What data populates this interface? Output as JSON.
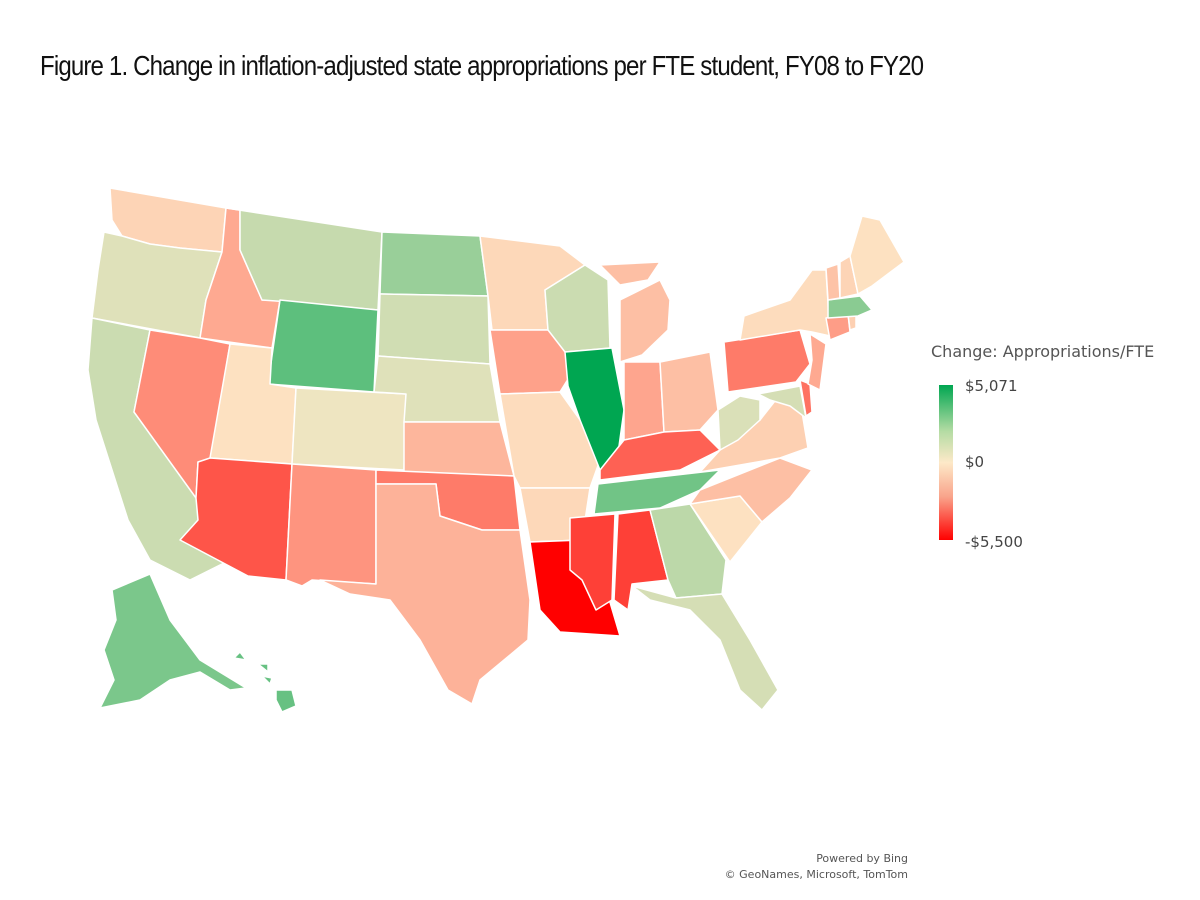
{
  "title": "Figure 1. Change in inflation-adjusted state appropriations per FTE student, FY08 to FY20",
  "legend": {
    "title": "Change: Appropriations/FTE",
    "max_label": "$5,071",
    "mid_label": "$0",
    "min_label": "-$5,500",
    "max_color": "#00a651",
    "mid_color": "#fde9c8",
    "min_color": "#ff0000"
  },
  "credits": {
    "line1": "Powered by Bing",
    "line2": "© GeoNames, Microsoft, TomTom"
  },
  "chart_data": {
    "type": "heatmap",
    "subtype": "choropleth",
    "title": "Figure 1. Change in inflation-adjusted state appropriations per FTE student, FY08 to FY20",
    "measure": "Change: Appropriations/FTE",
    "scale": {
      "min": -5500,
      "mid": 0,
      "max": 5071
    },
    "note": "Values estimated from color scale",
    "states": [
      {
        "id": "WA",
        "name": "Washington",
        "value": -500
      },
      {
        "id": "OR",
        "name": "Oregon",
        "value": 600
      },
      {
        "id": "CA",
        "name": "California",
        "value": 1000
      },
      {
        "id": "ID",
        "name": "Idaho",
        "value": -1500
      },
      {
        "id": "NV",
        "name": "Nevada",
        "value": -2200
      },
      {
        "id": "MT",
        "name": "Montana",
        "value": 1100
      },
      {
        "id": "WY",
        "name": "Wyoming",
        "value": 3200
      },
      {
        "id": "UT",
        "name": "Utah",
        "value": -200
      },
      {
        "id": "AZ",
        "name": "Arizona",
        "value": -3500
      },
      {
        "id": "CO",
        "name": "Colorado",
        "value": 300
      },
      {
        "id": "NM",
        "name": "New Mexico",
        "value": -2000
      },
      {
        "id": "ND",
        "name": "North Dakota",
        "value": 2000
      },
      {
        "id": "SD",
        "name": "South Dakota",
        "value": 900
      },
      {
        "id": "NE",
        "name": "Nebraska",
        "value": 600
      },
      {
        "id": "KS",
        "name": "Kansas",
        "value": -1200
      },
      {
        "id": "OK",
        "name": "Oklahoma",
        "value": -2600
      },
      {
        "id": "TX",
        "name": "Texas",
        "value": -1300
      },
      {
        "id": "MN",
        "name": "Minnesota",
        "value": -400
      },
      {
        "id": "IA",
        "name": "Iowa",
        "value": -1700
      },
      {
        "id": "MO",
        "name": "Missouri",
        "value": -300
      },
      {
        "id": "AR",
        "name": "Arkansas",
        "value": -400
      },
      {
        "id": "LA",
        "name": "Louisiana",
        "value": -5500
      },
      {
        "id": "WI",
        "name": "Wisconsin",
        "value": 1000
      },
      {
        "id": "IL",
        "name": "Illinois",
        "value": 5071
      },
      {
        "id": "MI",
        "name": "Michigan",
        "value": -1000
      },
      {
        "id": "IN",
        "name": "Indiana",
        "value": -1600
      },
      {
        "id": "OH",
        "name": "Ohio",
        "value": -1000
      },
      {
        "id": "KY",
        "name": "Kentucky",
        "value": -3200
      },
      {
        "id": "TN",
        "name": "Tennessee",
        "value": 2800
      },
      {
        "id": "MS",
        "name": "Mississippi",
        "value": -4000
      },
      {
        "id": "AL",
        "name": "Alabama",
        "value": -4000
      },
      {
        "id": "GA",
        "name": "Georgia",
        "value": 1300
      },
      {
        "id": "FL",
        "name": "Florida",
        "value": 800
      },
      {
        "id": "SC",
        "name": "South Carolina",
        "value": -200
      },
      {
        "id": "NC",
        "name": "North Carolina",
        "value": -1000
      },
      {
        "id": "VA",
        "name": "Virginia",
        "value": -600
      },
      {
        "id": "WV",
        "name": "West Virginia",
        "value": 700
      },
      {
        "id": "MD",
        "name": "Maryland",
        "value": 800
      },
      {
        "id": "DE",
        "name": "Delaware",
        "value": -2800
      },
      {
        "id": "PA",
        "name": "Pennsylvania",
        "value": -2600
      },
      {
        "id": "NJ",
        "name": "New Jersey",
        "value": -1500
      },
      {
        "id": "NY",
        "name": "New York",
        "value": -300
      },
      {
        "id": "CT",
        "name": "Connecticut",
        "value": -1800
      },
      {
        "id": "RI",
        "name": "Rhode Island",
        "value": -600
      },
      {
        "id": "MA",
        "name": "Massachusetts",
        "value": 2300
      },
      {
        "id": "VT",
        "name": "Vermont",
        "value": -900
      },
      {
        "id": "NH",
        "name": "New Hampshire",
        "value": -500
      },
      {
        "id": "ME",
        "name": "Maine",
        "value": -200
      },
      {
        "id": "AK",
        "name": "Alaska",
        "value": 2600
      },
      {
        "id": "HI",
        "name": "Hawaii",
        "value": 3000
      }
    ]
  }
}
